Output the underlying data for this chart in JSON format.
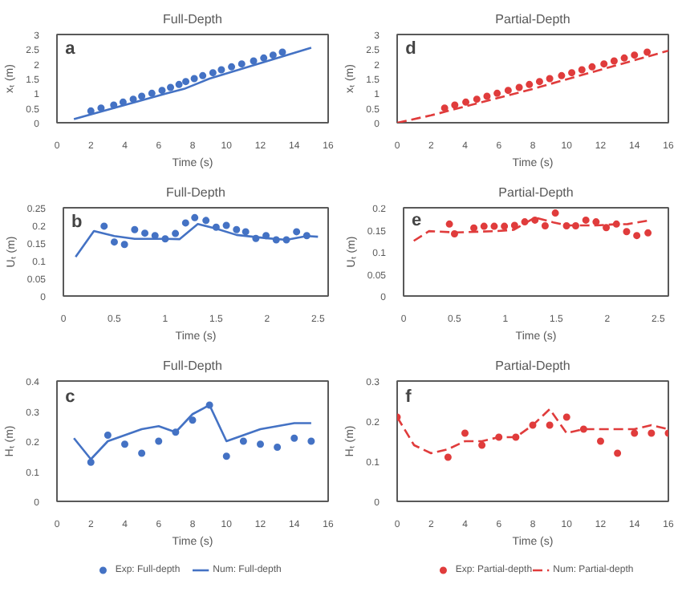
{
  "chart_data": [
    {
      "type": "scatter",
      "title": "Full-Depth",
      "xlabel": "Time (s)",
      "ylabel": "xₜ (m)",
      "annotations": [
        "a"
      ],
      "xlim": [
        0,
        16
      ],
      "xticks": [
        0,
        2,
        4,
        6,
        8,
        10,
        12,
        14,
        16
      ],
      "ylim": [
        0,
        3
      ],
      "yticks": [
        0,
        0.5,
        1,
        1.5,
        2,
        2.5,
        3
      ],
      "grid": false,
      "series": [
        {
          "color": "#4472c4",
          "marker": "circle",
          "x": [
            2,
            2.6,
            3.35,
            3.9,
            4.5,
            5.0,
            5.6,
            6.2,
            6.7,
            7.2,
            7.6,
            8.1,
            8.6,
            9.2,
            9.7,
            10.3,
            10.9,
            11.6,
            12.2,
            12.75,
            13.3
          ],
          "values": [
            0.4,
            0.5,
            0.6,
            0.7,
            0.8,
            0.9,
            1.0,
            1.1,
            1.2,
            1.3,
            1.4,
            1.5,
            1.6,
            1.7,
            1.8,
            1.9,
            2.0,
            2.1,
            2.2,
            2.3,
            2.4
          ]
        },
        {
          "type": "line",
          "color": "#4472c4",
          "line_style": "solid",
          "x": [
            1,
            6.5,
            7.5,
            9,
            15
          ],
          "values": [
            0.12,
            1.0,
            1.15,
            1.5,
            2.55
          ]
        }
      ]
    },
    {
      "type": "scatter",
      "title": "Partial-Depth",
      "xlabel": "Time (s)",
      "ylabel": "xₜ (m)",
      "annotations": [
        "d"
      ],
      "xlim": [
        0,
        16
      ],
      "xticks": [
        0,
        2,
        4,
        6,
        8,
        10,
        12,
        14,
        16
      ],
      "ylim": [
        0,
        3
      ],
      "yticks": [
        0,
        0.5,
        1,
        1.5,
        2,
        2.5,
        3
      ],
      "grid": false,
      "series": [
        {
          "color": "#e03c3c",
          "marker": "circle",
          "x": [
            2.8,
            3.4,
            4.05,
            4.7,
            5.3,
            5.9,
            6.55,
            7.2,
            7.8,
            8.4,
            9.0,
            9.7,
            10.3,
            10.9,
            11.5,
            12.2,
            12.8,
            13.4,
            14.0,
            14.75
          ],
          "values": [
            0.5,
            0.6,
            0.7,
            0.8,
            0.9,
            1.0,
            1.1,
            1.2,
            1.3,
            1.4,
            1.5,
            1.6,
            1.7,
            1.8,
            1.9,
            2.0,
            2.1,
            2.2,
            2.3,
            2.4
          ]
        },
        {
          "type": "line",
          "color": "#e03c3c",
          "line_style": "dashed",
          "x": [
            0,
            2,
            4,
            8,
            12,
            16
          ],
          "values": [
            0,
            0.25,
            0.55,
            1.15,
            1.8,
            2.45
          ]
        }
      ]
    },
    {
      "type": "scatter",
      "title": "Full-Depth",
      "xlabel": "Time (s)",
      "ylabel": "Uₜ (m)",
      "annotations": [
        "b"
      ],
      "xlim": [
        0,
        2.6
      ],
      "xticks": [
        0,
        0.5,
        1,
        1.5,
        2,
        2.5
      ],
      "ylim": [
        0,
        0.25
      ],
      "yticks": [
        0,
        0.05,
        0.1,
        0.15,
        0.2,
        0.25
      ],
      "grid": false,
      "series": [
        {
          "color": "#4472c4",
          "marker": "circle",
          "x": [
            0.4,
            0.5,
            0.6,
            0.7,
            0.8,
            0.9,
            1.0,
            1.1,
            1.2,
            1.29,
            1.4,
            1.5,
            1.6,
            1.7,
            1.79,
            1.89,
            1.99,
            2.09,
            2.19,
            2.29,
            2.39
          ],
          "values": [
            0.198,
            0.153,
            0.146,
            0.188,
            0.178,
            0.171,
            0.162,
            0.177,
            0.207,
            0.222,
            0.214,
            0.195,
            0.2,
            0.188,
            0.182,
            0.163,
            0.171,
            0.159,
            0.159,
            0.182,
            0.171
          ]
        },
        {
          "type": "line",
          "color": "#4472c4",
          "line_style": "solid",
          "x": [
            0.12,
            0.3,
            0.5,
            0.7,
            1.0,
            1.14,
            1.32,
            1.5,
            1.7,
            1.99,
            2.19,
            2.39,
            2.5
          ],
          "values": [
            0.111,
            0.184,
            0.17,
            0.162,
            0.162,
            0.161,
            0.204,
            0.191,
            0.173,
            0.164,
            0.159,
            0.17,
            0.168
          ]
        }
      ]
    },
    {
      "type": "scatter",
      "title": "Partial-Depth",
      "xlabel": "Time (s)",
      "ylabel": "Uₜ (m)",
      "annotations": [
        "e"
      ],
      "xlim": [
        0,
        2.6
      ],
      "xticks": [
        0,
        0.5,
        1,
        1.5,
        2,
        2.5
      ],
      "ylim": [
        0,
        0.2
      ],
      "yticks": [
        0,
        0.05,
        0.1,
        0.15,
        0.2
      ],
      "grid": false,
      "series": [
        {
          "color": "#e03c3c",
          "marker": "circle",
          "x": [
            0.45,
            0.5,
            0.69,
            0.79,
            0.89,
            0.99,
            1.09,
            1.19,
            1.29,
            1.39,
            1.49,
            1.6,
            1.69,
            1.79,
            1.89,
            1.99,
            2.09,
            2.19,
            2.29,
            2.4
          ],
          "values": [
            0.163,
            0.141,
            0.154,
            0.158,
            0.158,
            0.158,
            0.16,
            0.168,
            0.172,
            0.159,
            0.188,
            0.159,
            0.159,
            0.172,
            0.168,
            0.155,
            0.163,
            0.146,
            0.137,
            0.143
          ]
        },
        {
          "type": "line",
          "color": "#e03c3c",
          "line_style": "dashed",
          "x": [
            0.1,
            0.25,
            0.51,
            0.9,
            1.08,
            1.29,
            1.47,
            1.6,
            1.89,
            2.04,
            2.2,
            2.4
          ],
          "values": [
            0.125,
            0.147,
            0.144,
            0.147,
            0.15,
            0.178,
            0.167,
            0.16,
            0.16,
            0.162,
            0.163,
            0.171
          ]
        }
      ]
    },
    {
      "type": "scatter",
      "title": "Full-Depth",
      "xlabel": "Time (s)",
      "ylabel": "Hₜ (m)",
      "annotations": [
        "c"
      ],
      "xlim": [
        0,
        16
      ],
      "xticks": [
        0,
        2,
        4,
        6,
        8,
        10,
        12,
        14,
        16
      ],
      "ylim": [
        0,
        0.4
      ],
      "yticks": [
        0,
        0.1,
        0.2,
        0.3,
        0.4
      ],
      "grid": false,
      "legend": "bottom",
      "series": [
        {
          "name": "Exp: Full-depth",
          "color": "#4472c4",
          "marker": "circle",
          "x": [
            2,
            3,
            4,
            5,
            6,
            7,
            8,
            9,
            10,
            11,
            12,
            13,
            14,
            15
          ],
          "values": [
            0.13,
            0.22,
            0.19,
            0.16,
            0.2,
            0.23,
            0.27,
            0.32,
            0.15,
            0.2,
            0.19,
            0.18,
            0.21,
            0.2
          ]
        },
        {
          "type": "line",
          "name": "Num: Full-depth",
          "color": "#4472c4",
          "line_style": "solid",
          "x": [
            1,
            2,
            3,
            4,
            5,
            6,
            7,
            8,
            9,
            10,
            11,
            12,
            13,
            14,
            15
          ],
          "values": [
            0.21,
            0.14,
            0.2,
            0.22,
            0.24,
            0.25,
            0.23,
            0.29,
            0.32,
            0.2,
            0.22,
            0.24,
            0.25,
            0.26,
            0.26
          ]
        }
      ]
    },
    {
      "type": "scatter",
      "title": "Partial-Depth",
      "xlabel": "Time (s)",
      "ylabel": "Hₜ (m)",
      "annotations": [
        "f"
      ],
      "xlim": [
        0,
        16
      ],
      "xticks": [
        0,
        2,
        4,
        6,
        8,
        10,
        12,
        14,
        16
      ],
      "ylim": [
        0,
        0.3
      ],
      "yticks": [
        0,
        0.1,
        0.2,
        0.3
      ],
      "grid": false,
      "legend": "bottom",
      "series": [
        {
          "name": "Exp: Partial-depth",
          "color": "#e03c3c",
          "marker": "circle",
          "x": [
            0,
            3,
            4,
            5,
            6,
            7,
            8,
            9,
            10,
            11,
            12,
            13,
            14,
            15,
            16
          ],
          "values": [
            0.21,
            0.11,
            0.17,
            0.14,
            0.16,
            0.16,
            0.19,
            0.19,
            0.21,
            0.18,
            0.15,
            0.12,
            0.17,
            0.17,
            0.17
          ]
        },
        {
          "type": "line",
          "name": "Num: Partial-depth",
          "color": "#e03c3c",
          "line_style": "dashed",
          "x": [
            0,
            1,
            2,
            3,
            4,
            5,
            6,
            7,
            8,
            9,
            10,
            11,
            12,
            13,
            14,
            15,
            16
          ],
          "values": [
            0.21,
            0.14,
            0.12,
            0.13,
            0.15,
            0.15,
            0.16,
            0.16,
            0.19,
            0.23,
            0.17,
            0.18,
            0.18,
            0.18,
            0.18,
            0.19,
            0.18
          ]
        }
      ]
    }
  ]
}
